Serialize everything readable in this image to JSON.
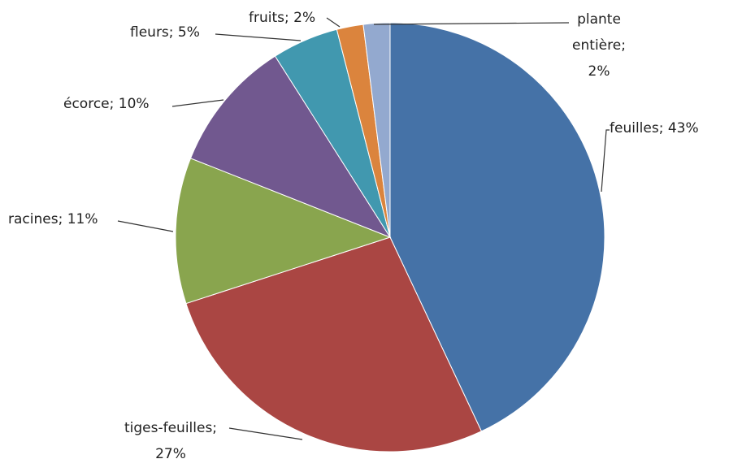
{
  "chart_data": {
    "type": "pie",
    "values": [
      43,
      27,
      11,
      10,
      5,
      2,
      2
    ],
    "value_labels": [
      "feuilles; 43%",
      "tiges-feuilles;\n27%",
      "racines; 11%",
      "écorce; 10%",
      "fleurs; 5%",
      "fruits; 2%",
      "plante\nentière;\n2%"
    ],
    "colors": [
      "#4572a7",
      "#aa4643",
      "#89a54e",
      "#71588f",
      "#4198af",
      "#db843d",
      "#93a9cf"
    ]
  }
}
